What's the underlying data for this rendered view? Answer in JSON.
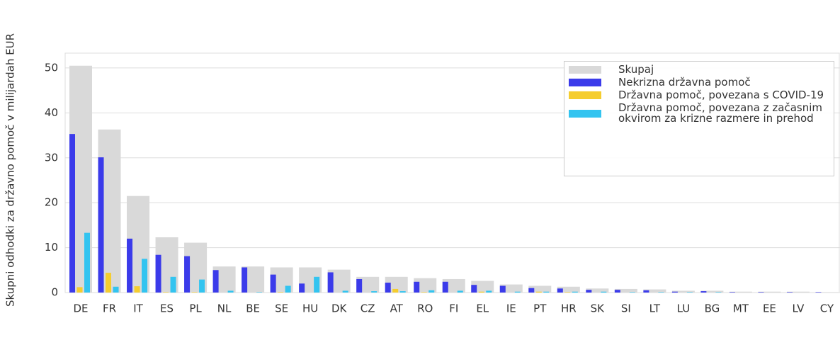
{
  "chart_data": {
    "type": "bar",
    "y_label": "Skupni odhodki za državno pomoč v milijardah EUR",
    "categories": [
      "DE",
      "FR",
      "IT",
      "ES",
      "PL",
      "NL",
      "BE",
      "SE",
      "HU",
      "DK",
      "CZ",
      "AT",
      "RO",
      "FI",
      "EL",
      "IE",
      "PT",
      "HR",
      "SK",
      "SI",
      "LT",
      "LU",
      "BG",
      "MT",
      "EE",
      "LV",
      "CY"
    ],
    "series": [
      {
        "name": "Skupaj",
        "color": "#d9d9d9",
        "values": [
          50.5,
          36.3,
          21.5,
          12.3,
          11.1,
          5.8,
          5.8,
          5.6,
          5.6,
          5.1,
          3.5,
          3.5,
          3.2,
          3.0,
          2.6,
          1.8,
          1.5,
          1.3,
          0.9,
          0.8,
          0.7,
          0.4,
          0.4,
          0.2,
          0.2,
          0.2,
          0.1
        ]
      },
      {
        "name": "Nekrizna državna pomoč",
        "color": "#3b3bea",
        "values": [
          35.3,
          30.1,
          12.0,
          8.4,
          8.1,
          5.0,
          5.6,
          4.0,
          2.0,
          4.5,
          3.0,
          2.2,
          2.4,
          2.4,
          1.7,
          1.5,
          1.0,
          0.9,
          0.6,
          0.6,
          0.5,
          0.2,
          0.3,
          0.1,
          0.1,
          0.1,
          0.1
        ]
      },
      {
        "name": "Državna pomoč, povezana s COVID-19",
        "color": "#f5cd2f",
        "values": [
          1.2,
          4.4,
          1.4,
          0.1,
          0.1,
          0,
          0,
          0.1,
          0,
          0,
          0,
          0.8,
          0.1,
          0,
          0.2,
          0,
          0.2,
          0.1,
          0,
          0,
          0,
          0,
          0,
          0,
          0,
          0,
          0
        ]
      },
      {
        "name": "Državna pomoč, povezana z začasnim okvirom za krizne razmere in prehod",
        "color": "#33c4f0",
        "values": [
          13.3,
          1.3,
          7.5,
          3.5,
          2.9,
          0.4,
          0.1,
          1.5,
          3.5,
          0.4,
          0.3,
          0.3,
          0.5,
          0.4,
          0.4,
          0.2,
          0.2,
          0.2,
          0.2,
          0.1,
          0.1,
          0.1,
          0.1,
          0,
          0,
          0,
          0
        ]
      }
    ],
    "ylim": [
      0,
      53.3
    ],
    "yticks": [
      0,
      10,
      20,
      30,
      40,
      50
    ],
    "grid": true,
    "legend": "upper right"
  }
}
